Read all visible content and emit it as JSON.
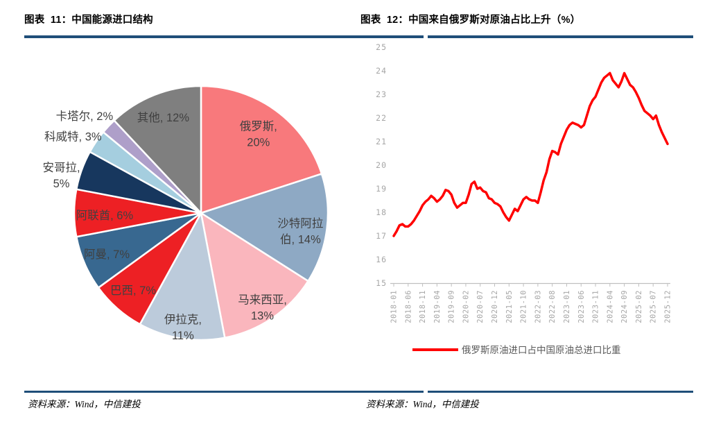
{
  "fig1": {
    "title": "图表  11：中国能源进口结构",
    "source": "资料来源：Wind，中信建投",
    "accent_color": "#1F4E79"
  },
  "fig2": {
    "title": "图表  12：中国来自俄罗斯对原油占比上升（%）",
    "source": "资料来源：Wind，中信建投",
    "accent_color": "#1F4E79"
  },
  "chart_data": [
    {
      "type": "pie",
      "title": "中国能源进口结构",
      "direction": "clockwise",
      "start_angle_deg": 0,
      "label_color": "#404040",
      "slice_border_color": "#FFFFFF",
      "slices": [
        {
          "label": "俄罗斯",
          "value": 20,
          "color": "#F8797C",
          "label_lines": [
            "俄罗斯,",
            "20%"
          ],
          "label_pos": "inside"
        },
        {
          "label": "沙特阿拉伯",
          "value": 14,
          "color": "#8EA9C4",
          "label_lines": [
            "沙特阿拉",
            "伯, 14%"
          ],
          "label_pos": "inside"
        },
        {
          "label": "马来西亚",
          "value": 13,
          "color": "#FAB6BD",
          "label_lines": [
            "马来西亚,",
            "13%"
          ],
          "label_pos": "inside"
        },
        {
          "label": "伊拉克",
          "value": 11,
          "color": "#BCCBDB",
          "label_lines": [
            "伊拉克,",
            "11%"
          ],
          "label_pos": "inside"
        },
        {
          "label": "巴西",
          "value": 7,
          "color": "#ED2024",
          "label_lines": [
            "巴西, 7%"
          ],
          "label_pos": "inside"
        },
        {
          "label": "阿曼",
          "value": 7,
          "color": "#386890",
          "label_lines": [
            "阿曼, 7%"
          ],
          "label_pos": "inside"
        },
        {
          "label": "阿联酋",
          "value": 6,
          "color": "#ED2024",
          "label_lines": [
            "阿联酋, 6%"
          ],
          "label_pos": "inside"
        },
        {
          "label": "安哥拉",
          "value": 5,
          "color": "#17375E",
          "label_lines": [
            "安哥拉,",
            "5%"
          ],
          "label_pos": "outside"
        },
        {
          "label": "科威特",
          "value": 3,
          "color": "#A5CEDF",
          "label_lines": [
            "科威特, 3%"
          ],
          "label_pos": "outside"
        },
        {
          "label": "卡塔尔",
          "value": 2,
          "color": "#AE9FC9",
          "label_lines": [
            "卡塔尔, 2%"
          ],
          "label_pos": "outside"
        },
        {
          "label": "其他",
          "value": 12,
          "color": "#7F7F7F",
          "label_lines": [
            "其他, 12%"
          ],
          "label_pos": "inside"
        }
      ]
    },
    {
      "type": "line",
      "title": "中国来自俄罗斯对原油占比上升（%）",
      "legend": [
        "俄罗斯原油进口占中国原油总进口比重"
      ],
      "line_color": "#FF0000",
      "axis_label_color": "#A6A6A6",
      "axis_line_color": "#BFBFBF",
      "legend_text_color": "#595959",
      "ylim": [
        15,
        25
      ],
      "y_ticks": [
        15,
        16,
        17,
        18,
        19,
        20,
        21,
        22,
        23,
        24,
        25
      ],
      "x_tick_labels": [
        "2018-01",
        "2018-06",
        "2018-11",
        "2019-04",
        "2019-09",
        "2020-02",
        "2020-07",
        "2020-12",
        "2021-05",
        "2021-10",
        "2022-03",
        "2022-08",
        "2023-01",
        "2023-06",
        "2023-11",
        "2024-04",
        "2024-09",
        "2025-02",
        "2025-07",
        "2025-12"
      ],
      "x_tick_every_n_points": 5,
      "x_start": "2018-01",
      "x_freq": "monthly",
      "values": [
        17.0,
        17.2,
        17.45,
        17.5,
        17.4,
        17.4,
        17.5,
        17.65,
        17.85,
        18.05,
        18.3,
        18.45,
        18.55,
        18.7,
        18.6,
        18.45,
        18.55,
        18.7,
        18.95,
        18.9,
        18.75,
        18.4,
        18.2,
        18.3,
        18.4,
        18.4,
        18.75,
        19.2,
        19.3,
        19.0,
        19.05,
        18.9,
        18.85,
        18.6,
        18.55,
        18.4,
        18.35,
        18.25,
        18.0,
        17.8,
        17.65,
        17.9,
        18.15,
        18.05,
        18.3,
        18.55,
        18.65,
        18.55,
        18.5,
        18.5,
        18.4,
        18.85,
        19.35,
        19.7,
        20.25,
        20.6,
        20.55,
        20.45,
        20.9,
        21.2,
        21.5,
        21.7,
        21.8,
        21.75,
        21.7,
        21.6,
        21.7,
        22.1,
        22.5,
        22.75,
        22.9,
        23.2,
        23.5,
        23.7,
        23.8,
        23.9,
        23.6,
        23.45,
        23.3,
        23.55,
        23.9,
        23.65,
        23.4,
        23.3,
        23.1,
        22.85,
        22.55,
        22.3,
        22.2,
        22.1,
        21.95,
        22.1,
        21.7,
        21.4,
        21.15,
        20.9
      ]
    }
  ]
}
